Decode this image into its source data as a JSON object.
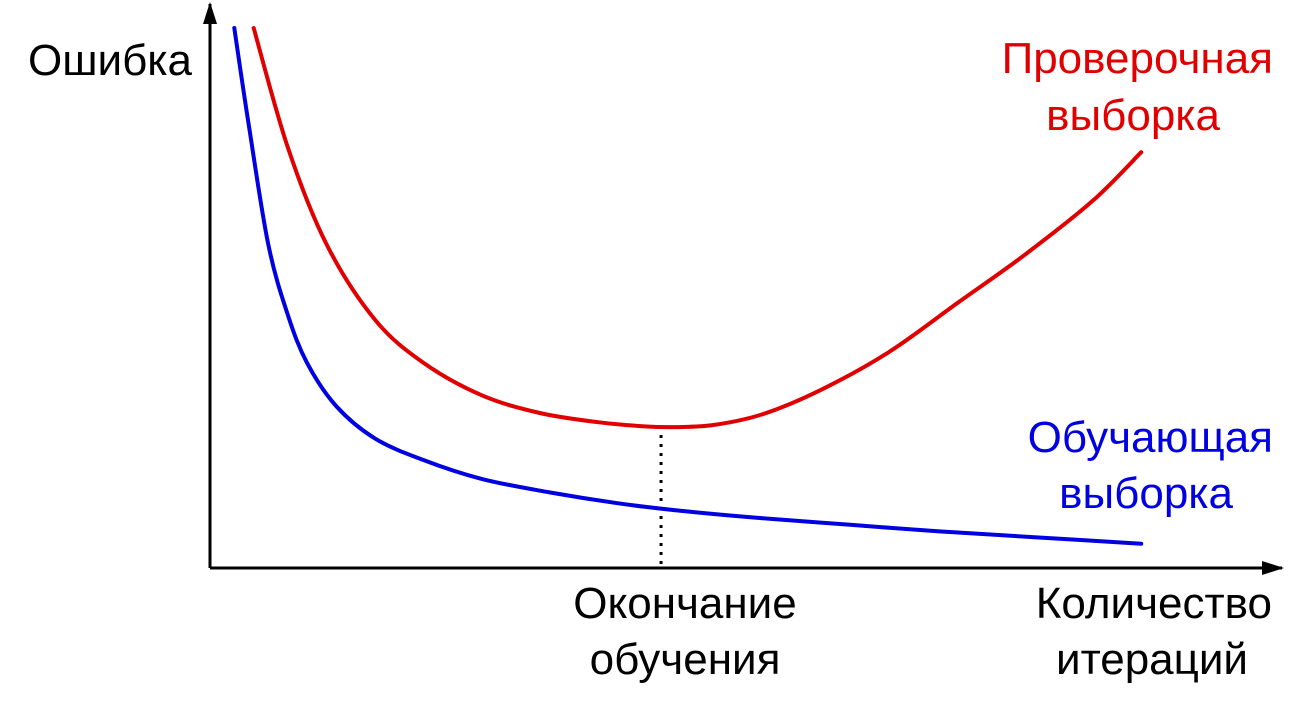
{
  "chart_data": {
    "type": "line",
    "title": "",
    "ylabel": "Ошибка",
    "xlabel": [
      "Количество",
      "итераций"
    ],
    "grid": false,
    "xlim": [
      0,
      1
    ],
    "ylim": [
      0,
      1
    ],
    "series": [
      {
        "name": [
          "Проверочная",
          "выборка"
        ],
        "color": "#e00000",
        "x": [
          0.045,
          0.08,
          0.12,
          0.17,
          0.22,
          0.28,
          0.34,
          0.4,
          0.45,
          0.48,
          0.52,
          0.57,
          0.63,
          0.7,
          0.77,
          0.84,
          0.91,
          0.96
        ],
        "y": [
          1.0,
          0.78,
          0.6,
          0.46,
          0.38,
          0.32,
          0.287,
          0.27,
          0.262,
          0.261,
          0.265,
          0.285,
          0.33,
          0.4,
          0.49,
          0.58,
          0.68,
          0.77
        ]
      },
      {
        "name": [
          "Обучающая",
          "выборка"
        ],
        "color": "#0000e0",
        "x": [
          0.025,
          0.04,
          0.06,
          0.08,
          0.1,
          0.13,
          0.17,
          0.22,
          0.28,
          0.35,
          0.42,
          0.49,
          0.57,
          0.66,
          0.75,
          0.85,
          0.96
        ],
        "y": [
          1.0,
          0.82,
          0.6,
          0.47,
          0.38,
          0.3,
          0.24,
          0.2,
          0.165,
          0.14,
          0.12,
          0.105,
          0.092,
          0.08,
          0.068,
          0.057,
          0.045
        ]
      }
    ],
    "marker": {
      "x": 0.465,
      "label": [
        "Окончание",
        "обучения"
      ],
      "style": "dotted"
    }
  }
}
